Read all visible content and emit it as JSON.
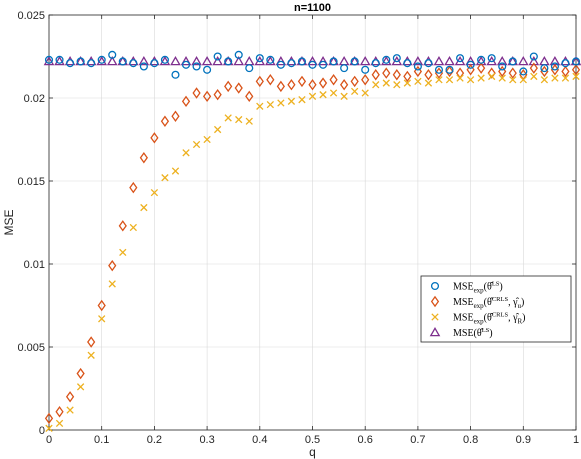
{
  "chart_data": {
    "type": "scatter",
    "title": "n=1100",
    "xlabel": "q",
    "ylabel": "MSE",
    "xlim": [
      0,
      1
    ],
    "ylim": [
      0,
      0.025
    ],
    "x_ticks": [
      "0",
      "0.1",
      "0.2",
      "0.3",
      "0.4",
      "0.5",
      "0.6",
      "0.7",
      "0.8",
      "0.9",
      "1"
    ],
    "y_ticks": [
      "0",
      "0.005",
      "0.01",
      "0.015",
      "0.02",
      "0.025"
    ],
    "grid": true,
    "legend_position": "bottom-right",
    "x": [
      0,
      0.02,
      0.04,
      0.06,
      0.08,
      0.1,
      0.12,
      0.14,
      0.16,
      0.18,
      0.2,
      0.22,
      0.24,
      0.26,
      0.28,
      0.3,
      0.32,
      0.34,
      0.36,
      0.38,
      0.4,
      0.42,
      0.44,
      0.46,
      0.48,
      0.5,
      0.52,
      0.54,
      0.56,
      0.58,
      0.6,
      0.62,
      0.64,
      0.66,
      0.68,
      0.7,
      0.72,
      0.74,
      0.76,
      0.78,
      0.8,
      0.82,
      0.84,
      0.86,
      0.88,
      0.9,
      0.92,
      0.94,
      0.96,
      0.98,
      1.0
    ],
    "series": [
      {
        "name": "MSE_exp(θ̂^LS)",
        "marker": "circle",
        "color": "#0072BD",
        "values": [
          0.0223,
          0.0223,
          0.0221,
          0.0222,
          0.0221,
          0.0223,
          0.0226,
          0.0222,
          0.0221,
          0.0219,
          0.0221,
          0.0223,
          0.0214,
          0.022,
          0.0219,
          0.0217,
          0.0225,
          0.0222,
          0.0226,
          0.0218,
          0.0224,
          0.0223,
          0.022,
          0.0221,
          0.0222,
          0.022,
          0.022,
          0.0222,
          0.0218,
          0.0222,
          0.0217,
          0.0221,
          0.0223,
          0.0224,
          0.0221,
          0.0219,
          0.0221,
          0.0217,
          0.0217,
          0.0224,
          0.022,
          0.0223,
          0.0224,
          0.0219,
          0.0222,
          0.0216,
          0.0225,
          0.0218,
          0.0219,
          0.0221,
          0.0222
        ]
      },
      {
        "name": "MSE_exp(θ̂^CRLS, γ̂_u)",
        "marker": "diamond",
        "color": "#D95319",
        "values": [
          0.0007,
          0.0011,
          0.002,
          0.0034,
          0.0053,
          0.0075,
          0.0099,
          0.0123,
          0.0146,
          0.0164,
          0.0176,
          0.0186,
          0.0189,
          0.0198,
          0.0203,
          0.0201,
          0.0202,
          0.0207,
          0.0206,
          0.0201,
          0.021,
          0.0211,
          0.0207,
          0.0208,
          0.021,
          0.0208,
          0.0209,
          0.0211,
          0.0208,
          0.021,
          0.0211,
          0.0214,
          0.0215,
          0.0214,
          0.0213,
          0.0216,
          0.0214,
          0.0215,
          0.0216,
          0.0215,
          0.0217,
          0.0218,
          0.0215,
          0.0216,
          0.0215,
          0.0214,
          0.0218,
          0.0216,
          0.0217,
          0.0216,
          0.0217
        ]
      },
      {
        "name": "MSE_exp(θ̂^CRLS, γ̂_R)",
        "marker": "x",
        "color": "#EDB120",
        "values": [
          0.0001,
          0.0004,
          0.0012,
          0.0026,
          0.0045,
          0.0067,
          0.0088,
          0.0107,
          0.0122,
          0.0134,
          0.0143,
          0.0152,
          0.0156,
          0.0167,
          0.0172,
          0.0175,
          0.0181,
          0.0188,
          0.0187,
          0.0186,
          0.0195,
          0.0196,
          0.0197,
          0.0198,
          0.0199,
          0.0201,
          0.0202,
          0.0203,
          0.0201,
          0.0204,
          0.0203,
          0.0208,
          0.0209,
          0.0208,
          0.0209,
          0.021,
          0.0209,
          0.0211,
          0.0211,
          0.0212,
          0.0211,
          0.0212,
          0.0213,
          0.0212,
          0.0211,
          0.0211,
          0.0213,
          0.0211,
          0.0212,
          0.0212,
          0.0213
        ]
      },
      {
        "name": "MSE(θ̂^LS)",
        "marker": "triangle",
        "color": "#7E2F8E",
        "values": [
          0.0222,
          0.0222,
          0.0222,
          0.0222,
          0.0222,
          0.0222,
          0.0222,
          0.0222,
          0.0222,
          0.0222,
          0.0222,
          0.0222,
          0.0222,
          0.0222,
          0.0222,
          0.0222,
          0.0222,
          0.0222,
          0.0222,
          0.0222,
          0.0222,
          0.0222,
          0.0222,
          0.0222,
          0.0222,
          0.0222,
          0.0222,
          0.0222,
          0.0222,
          0.0222,
          0.0222,
          0.0222,
          0.0222,
          0.0222,
          0.0222,
          0.0222,
          0.0222,
          0.0222,
          0.0222,
          0.0222,
          0.0222,
          0.0222,
          0.0222,
          0.0222,
          0.0222,
          0.0222,
          0.0222,
          0.0222,
          0.0222,
          0.0222,
          0.0222
        ]
      }
    ]
  }
}
